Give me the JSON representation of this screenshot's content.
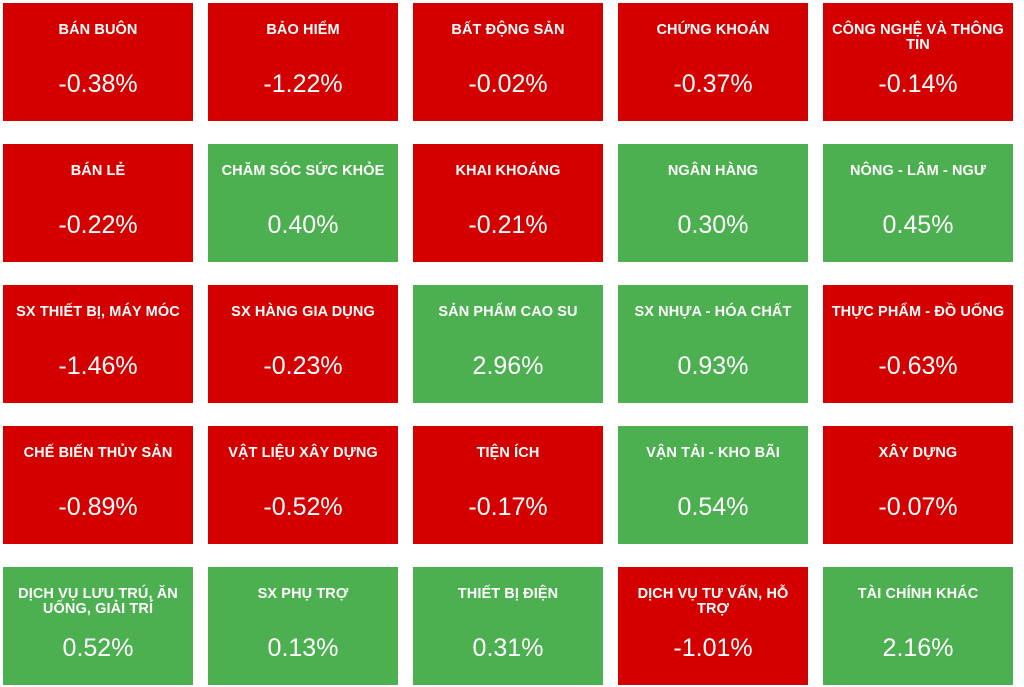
{
  "sectors": [
    {
      "name": "BÁN BUÔN",
      "change": "-0.38%",
      "direction": "down"
    },
    {
      "name": "BẢO HIỂM",
      "change": "-1.22%",
      "direction": "down"
    },
    {
      "name": "BẤT ĐỘNG SẢN",
      "change": "-0.02%",
      "direction": "down"
    },
    {
      "name": "CHỨNG KHOÁN",
      "change": "-0.37%",
      "direction": "down"
    },
    {
      "name": "CÔNG NGHỆ VÀ THÔNG TIN",
      "change": "-0.14%",
      "direction": "down"
    },
    {
      "name": "BÁN LẺ",
      "change": "-0.22%",
      "direction": "down"
    },
    {
      "name": "CHĂM SÓC SỨC KHỎE",
      "change": "0.40%",
      "direction": "up"
    },
    {
      "name": "KHAI KHOÁNG",
      "change": "-0.21%",
      "direction": "down"
    },
    {
      "name": "NGÂN HÀNG",
      "change": "0.30%",
      "direction": "up"
    },
    {
      "name": "NÔNG - LÂM - NGƯ",
      "change": "0.45%",
      "direction": "up"
    },
    {
      "name": "SX THIẾT BỊ, MÁY MÓC",
      "change": "-1.46%",
      "direction": "down"
    },
    {
      "name": "SX HÀNG GIA DỤNG",
      "change": "-0.23%",
      "direction": "down"
    },
    {
      "name": "SẢN PHẨM CAO SU",
      "change": "2.96%",
      "direction": "up"
    },
    {
      "name": "SX NHỰA - HÓA CHẤT",
      "change": "0.93%",
      "direction": "up"
    },
    {
      "name": "THỰC PHẨM - ĐỒ UỐNG",
      "change": "-0.63%",
      "direction": "down"
    },
    {
      "name": "CHẾ BIẾN THỦY SẢN",
      "change": "-0.89%",
      "direction": "down"
    },
    {
      "name": "VẬT LIỆU XÂY DỰNG",
      "change": "-0.52%",
      "direction": "down"
    },
    {
      "name": "TIỆN ÍCH",
      "change": "-0.17%",
      "direction": "down"
    },
    {
      "name": "VẬN TẢI - KHO BÃI",
      "change": "0.54%",
      "direction": "up"
    },
    {
      "name": "XÂY DỰNG",
      "change": "-0.07%",
      "direction": "down"
    },
    {
      "name": "DỊCH VỤ LƯU TRÚ, ĂN UỐNG, GIẢI TRÍ",
      "change": "0.52%",
      "direction": "up"
    },
    {
      "name": "SX PHỤ TRỢ",
      "change": "0.13%",
      "direction": "up"
    },
    {
      "name": "THIẾT BỊ ĐIỆN",
      "change": "0.31%",
      "direction": "up"
    },
    {
      "name": "DỊCH VỤ TƯ VẤN, HỖ TRỢ",
      "change": "-1.01%",
      "direction": "down"
    },
    {
      "name": "TÀI CHÍNH KHÁC",
      "change": "2.16%",
      "direction": "up"
    }
  ],
  "colors": {
    "down": "#d40000",
    "up": "#4caf50",
    "text": "#ffffff"
  }
}
